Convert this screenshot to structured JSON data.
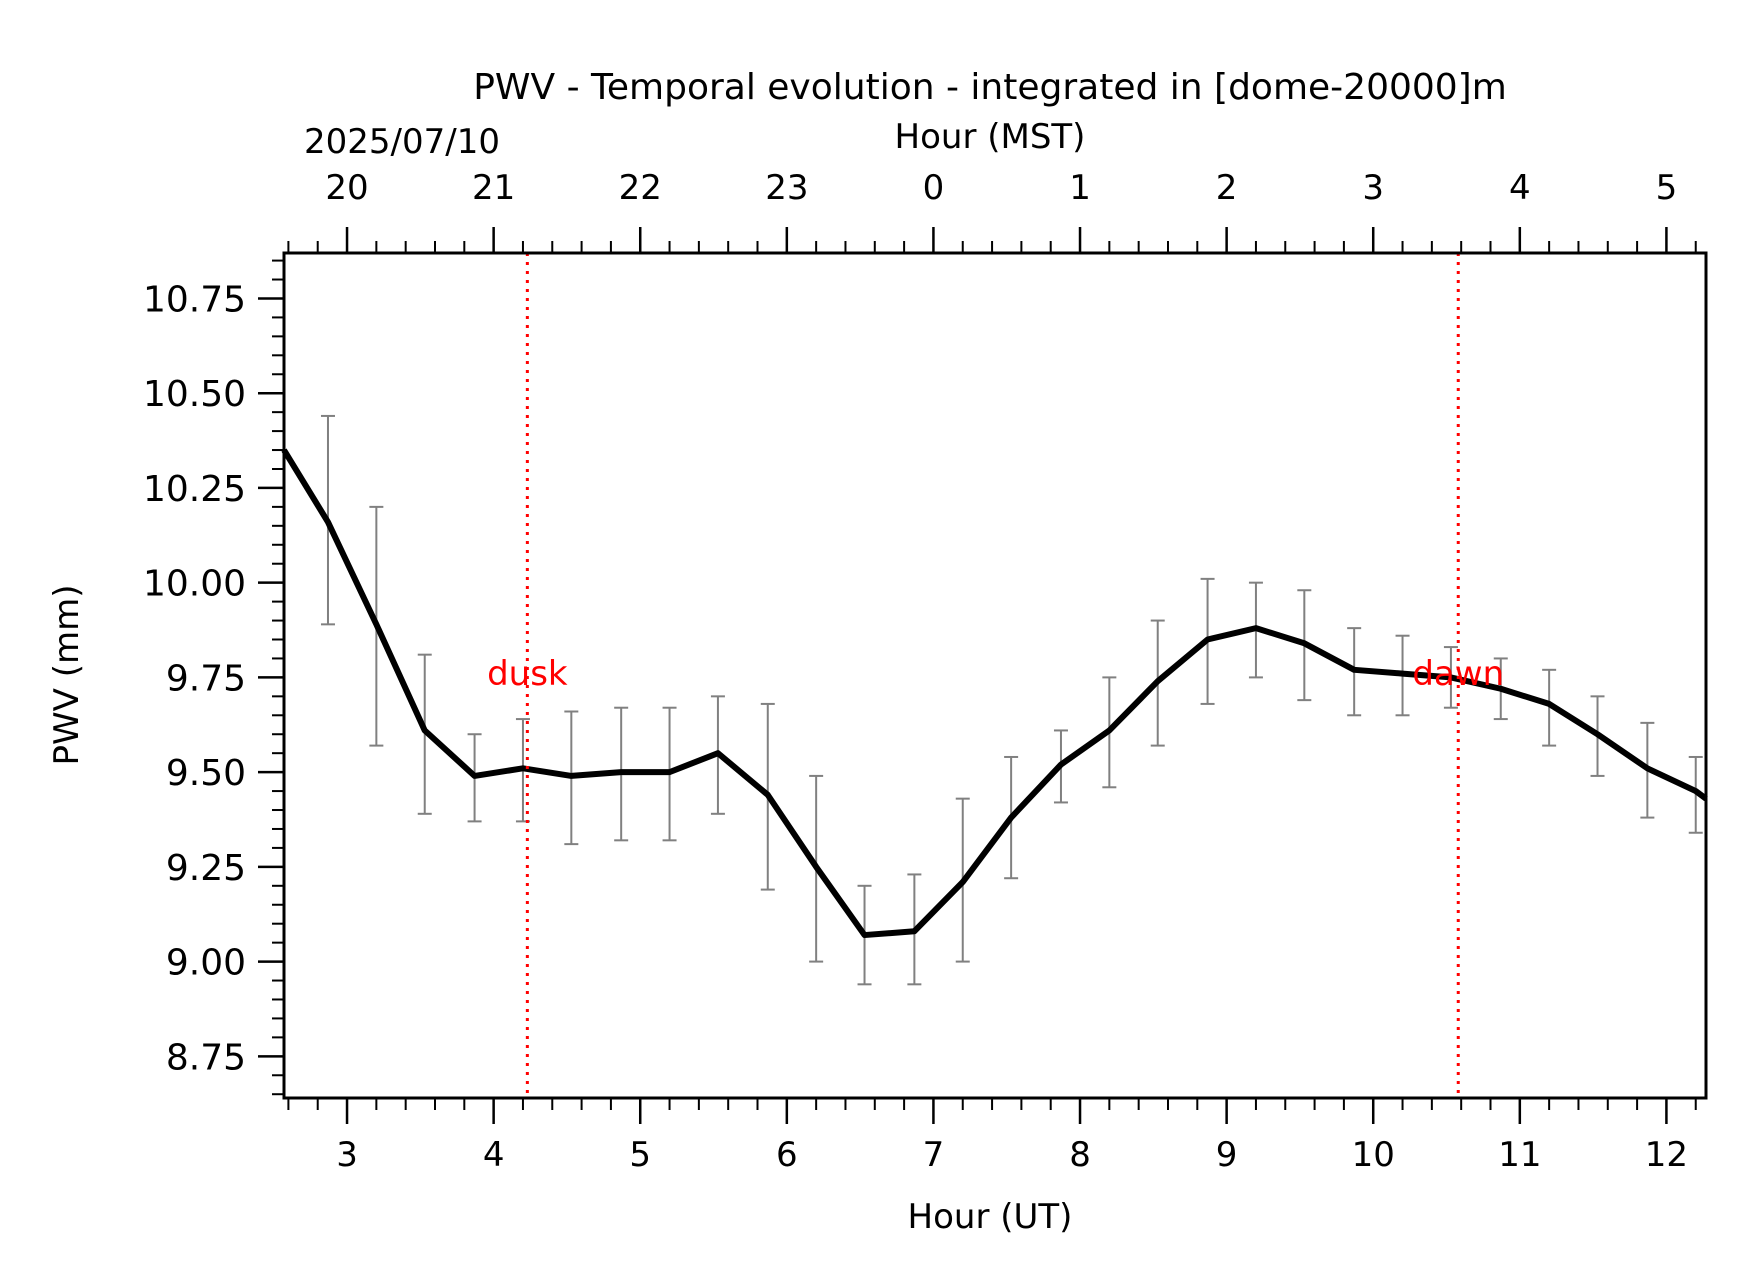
{
  "chart_data": {
    "type": "line",
    "title": "PWV - Temporal evolution - integrated in [dome-20000]m",
    "top_axis_label": "Hour (MST)",
    "date_label": "2025/07/10",
    "xlabel": "Hour (UT)",
    "ylabel": "PWV (mm)",
    "xlim": [
      2.57,
      12.27
    ],
    "ylim": [
      8.64,
      10.87
    ],
    "x_ticks": [
      3,
      4,
      5,
      6,
      7,
      8,
      9,
      10,
      11,
      12
    ],
    "x_tick_labels": [
      "3",
      "4",
      "5",
      "6",
      "7",
      "8",
      "9",
      "10",
      "11",
      "12"
    ],
    "y_ticks": [
      8.75,
      9.0,
      9.25,
      9.5,
      9.75,
      10.0,
      10.25,
      10.5,
      10.75
    ],
    "y_tick_labels": [
      "8.75",
      "9.00",
      "9.25",
      "9.50",
      "9.75",
      "10.00",
      "10.25",
      "10.50",
      "10.75"
    ],
    "top_ticks_ut": [
      3,
      4,
      5,
      6,
      7,
      8,
      9,
      10,
      11,
      12
    ],
    "top_tick_labels": [
      "20",
      "21",
      "22",
      "23",
      "0",
      "1",
      "2",
      "3",
      "4",
      "5"
    ],
    "series": [
      {
        "name": "PWV",
        "color": "#000000",
        "x": [
          2.57,
          2.87,
          3.2,
          3.53,
          3.87,
          4.2,
          4.53,
          4.87,
          5.2,
          5.53,
          5.87,
          6.2,
          6.53,
          6.87,
          7.2,
          7.53,
          7.87,
          8.2,
          8.53,
          8.87,
          9.2,
          9.53,
          9.87,
          10.2,
          10.53,
          10.87,
          11.2,
          11.53,
          11.87,
          12.2,
          12.27
        ],
        "y": [
          10.35,
          10.16,
          9.89,
          9.61,
          9.49,
          9.51,
          9.49,
          9.5,
          9.5,
          9.55,
          9.44,
          9.25,
          9.07,
          9.08,
          9.21,
          9.38,
          9.52,
          9.61,
          9.74,
          9.85,
          9.88,
          9.84,
          9.77,
          9.76,
          9.75,
          9.72,
          9.68,
          9.6,
          9.51,
          9.45,
          9.43
        ]
      }
    ],
    "error_bars": {
      "color": "#808080",
      "x": [
        2.87,
        3.2,
        3.53,
        3.87,
        4.2,
        4.53,
        4.87,
        5.2,
        5.53,
        5.87,
        6.2,
        6.53,
        6.87,
        7.2,
        7.53,
        7.87,
        8.2,
        8.53,
        8.87,
        9.2,
        9.53,
        9.87,
        10.2,
        10.53,
        10.87,
        11.2,
        11.53,
        11.87,
        12.2
      ],
      "low": [
        9.89,
        9.57,
        9.39,
        9.37,
        9.37,
        9.31,
        9.32,
        9.32,
        9.39,
        9.19,
        9.0,
        8.94,
        8.94,
        9.0,
        9.22,
        9.42,
        9.46,
        9.57,
        9.68,
        9.75,
        9.69,
        9.65,
        9.65,
        9.67,
        9.64,
        9.57,
        9.49,
        9.38,
        9.34
      ],
      "high": [
        10.44,
        10.2,
        9.81,
        9.6,
        9.64,
        9.66,
        9.67,
        9.67,
        9.7,
        9.68,
        9.49,
        9.2,
        9.23,
        9.43,
        9.54,
        9.61,
        9.75,
        9.9,
        10.01,
        10.0,
        9.98,
        9.88,
        9.86,
        9.83,
        9.8,
        9.77,
        9.7,
        9.63,
        9.54
      ]
    },
    "markers": [
      {
        "label": "dusk",
        "x": 4.23,
        "color": "#ff0000"
      },
      {
        "label": "dawn",
        "x": 10.58,
        "color": "#ff0000"
      }
    ],
    "grid": false,
    "legend": "none"
  }
}
